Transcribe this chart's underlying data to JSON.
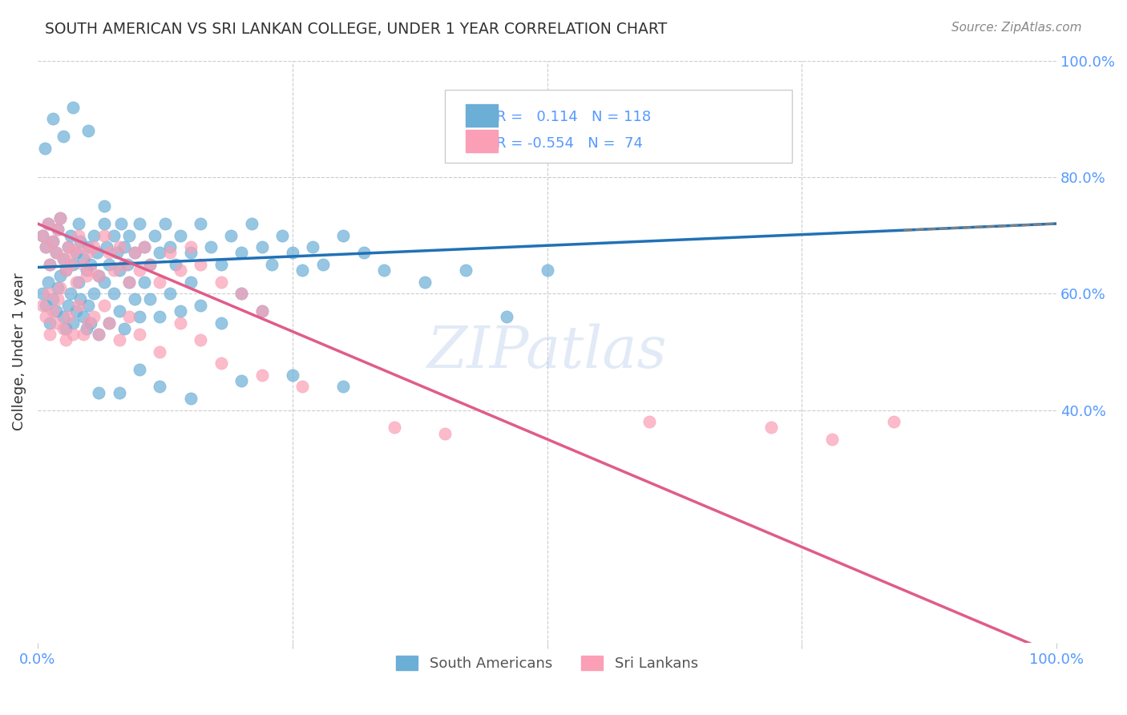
{
  "title": "SOUTH AMERICAN VS SRI LANKAN COLLEGE, UNDER 1 YEAR CORRELATION CHART",
  "source": "Source: ZipAtlas.com",
  "xlabel": "",
  "ylabel": "College, Under 1 year",
  "xlim": [
    0.0,
    1.0
  ],
  "ylim": [
    0.0,
    1.0
  ],
  "x_tick_labels": [
    "0.0%",
    "100.0%"
  ],
  "y_tick_labels_right": [
    "100.0%",
    "80.0%",
    "60.0%",
    "40.0%"
  ],
  "watermark": "ZIPatlas",
  "legend_r_sa": "0.114",
  "legend_n_sa": "118",
  "legend_r_sl": "-0.554",
  "legend_n_sl": "74",
  "color_sa": "#6baed6",
  "color_sl": "#fa9fb5",
  "color_sa_line": "#2171b5",
  "color_sl_line": "#e05c8a",
  "title_color": "#333333",
  "axis_color": "#5599ff",
  "south_american_x": [
    0.005,
    0.008,
    0.01,
    0.012,
    0.015,
    0.018,
    0.02,
    0.022,
    0.025,
    0.028,
    0.03,
    0.032,
    0.035,
    0.038,
    0.04,
    0.042,
    0.045,
    0.048,
    0.05,
    0.052,
    0.055,
    0.058,
    0.06,
    0.065,
    0.068,
    0.07,
    0.075,
    0.078,
    0.08,
    0.082,
    0.085,
    0.088,
    0.09,
    0.095,
    0.1,
    0.105,
    0.11,
    0.115,
    0.12,
    0.125,
    0.13,
    0.135,
    0.14,
    0.15,
    0.16,
    0.17,
    0.18,
    0.19,
    0.2,
    0.21,
    0.22,
    0.23,
    0.24,
    0.25,
    0.26,
    0.27,
    0.28,
    0.3,
    0.32,
    0.34,
    0.005,
    0.008,
    0.01,
    0.012,
    0.015,
    0.018,
    0.02,
    0.022,
    0.025,
    0.028,
    0.03,
    0.032,
    0.035,
    0.038,
    0.04,
    0.042,
    0.045,
    0.048,
    0.05,
    0.052,
    0.055,
    0.06,
    0.065,
    0.07,
    0.075,
    0.08,
    0.085,
    0.09,
    0.095,
    0.1,
    0.105,
    0.11,
    0.12,
    0.13,
    0.14,
    0.15,
    0.16,
    0.18,
    0.2,
    0.22,
    0.007,
    0.015,
    0.025,
    0.035,
    0.05,
    0.065,
    0.38,
    0.42,
    0.46,
    0.5,
    0.06,
    0.08,
    0.1,
    0.12,
    0.15,
    0.2,
    0.25,
    0.3
  ],
  "south_american_y": [
    0.7,
    0.68,
    0.72,
    0.65,
    0.69,
    0.67,
    0.71,
    0.73,
    0.66,
    0.64,
    0.68,
    0.7,
    0.65,
    0.67,
    0.72,
    0.69,
    0.66,
    0.64,
    0.68,
    0.65,
    0.7,
    0.67,
    0.63,
    0.72,
    0.68,
    0.65,
    0.7,
    0.67,
    0.64,
    0.72,
    0.68,
    0.65,
    0.7,
    0.67,
    0.72,
    0.68,
    0.65,
    0.7,
    0.67,
    0.72,
    0.68,
    0.65,
    0.7,
    0.67,
    0.72,
    0.68,
    0.65,
    0.7,
    0.67,
    0.72,
    0.68,
    0.65,
    0.7,
    0.67,
    0.64,
    0.68,
    0.65,
    0.7,
    0.67,
    0.64,
    0.6,
    0.58,
    0.62,
    0.55,
    0.59,
    0.57,
    0.61,
    0.63,
    0.56,
    0.54,
    0.58,
    0.6,
    0.55,
    0.57,
    0.62,
    0.59,
    0.56,
    0.54,
    0.58,
    0.55,
    0.6,
    0.53,
    0.62,
    0.55,
    0.6,
    0.57,
    0.54,
    0.62,
    0.59,
    0.56,
    0.62,
    0.59,
    0.56,
    0.6,
    0.57,
    0.62,
    0.58,
    0.55,
    0.6,
    0.57,
    0.85,
    0.9,
    0.87,
    0.92,
    0.88,
    0.75,
    0.62,
    0.64,
    0.56,
    0.64,
    0.43,
    0.43,
    0.47,
    0.44,
    0.42,
    0.45,
    0.46,
    0.44
  ],
  "sri_lankan_x": [
    0.005,
    0.008,
    0.01,
    0.012,
    0.015,
    0.018,
    0.02,
    0.022,
    0.025,
    0.028,
    0.03,
    0.032,
    0.035,
    0.038,
    0.04,
    0.042,
    0.045,
    0.048,
    0.05,
    0.052,
    0.055,
    0.06,
    0.065,
    0.07,
    0.075,
    0.08,
    0.085,
    0.09,
    0.095,
    0.1,
    0.105,
    0.11,
    0.12,
    0.13,
    0.14,
    0.15,
    0.16,
    0.18,
    0.2,
    0.22,
    0.005,
    0.008,
    0.01,
    0.012,
    0.015,
    0.018,
    0.02,
    0.022,
    0.025,
    0.028,
    0.03,
    0.035,
    0.04,
    0.045,
    0.05,
    0.055,
    0.06,
    0.065,
    0.07,
    0.08,
    0.09,
    0.1,
    0.12,
    0.14,
    0.16,
    0.18,
    0.22,
    0.26,
    0.35,
    0.4,
    0.6,
    0.72,
    0.78,
    0.84
  ],
  "sri_lankan_y": [
    0.7,
    0.68,
    0.72,
    0.65,
    0.69,
    0.67,
    0.71,
    0.73,
    0.66,
    0.64,
    0.68,
    0.65,
    0.67,
    0.62,
    0.7,
    0.68,
    0.65,
    0.63,
    0.67,
    0.64,
    0.68,
    0.63,
    0.7,
    0.67,
    0.64,
    0.68,
    0.65,
    0.62,
    0.67,
    0.64,
    0.68,
    0.65,
    0.62,
    0.67,
    0.64,
    0.68,
    0.65,
    0.62,
    0.6,
    0.57,
    0.58,
    0.56,
    0.6,
    0.53,
    0.57,
    0.55,
    0.59,
    0.61,
    0.54,
    0.52,
    0.56,
    0.53,
    0.58,
    0.53,
    0.55,
    0.56,
    0.53,
    0.58,
    0.55,
    0.52,
    0.56,
    0.53,
    0.5,
    0.55,
    0.52,
    0.48,
    0.46,
    0.44,
    0.37,
    0.36,
    0.38,
    0.37,
    0.35,
    0.38
  ]
}
